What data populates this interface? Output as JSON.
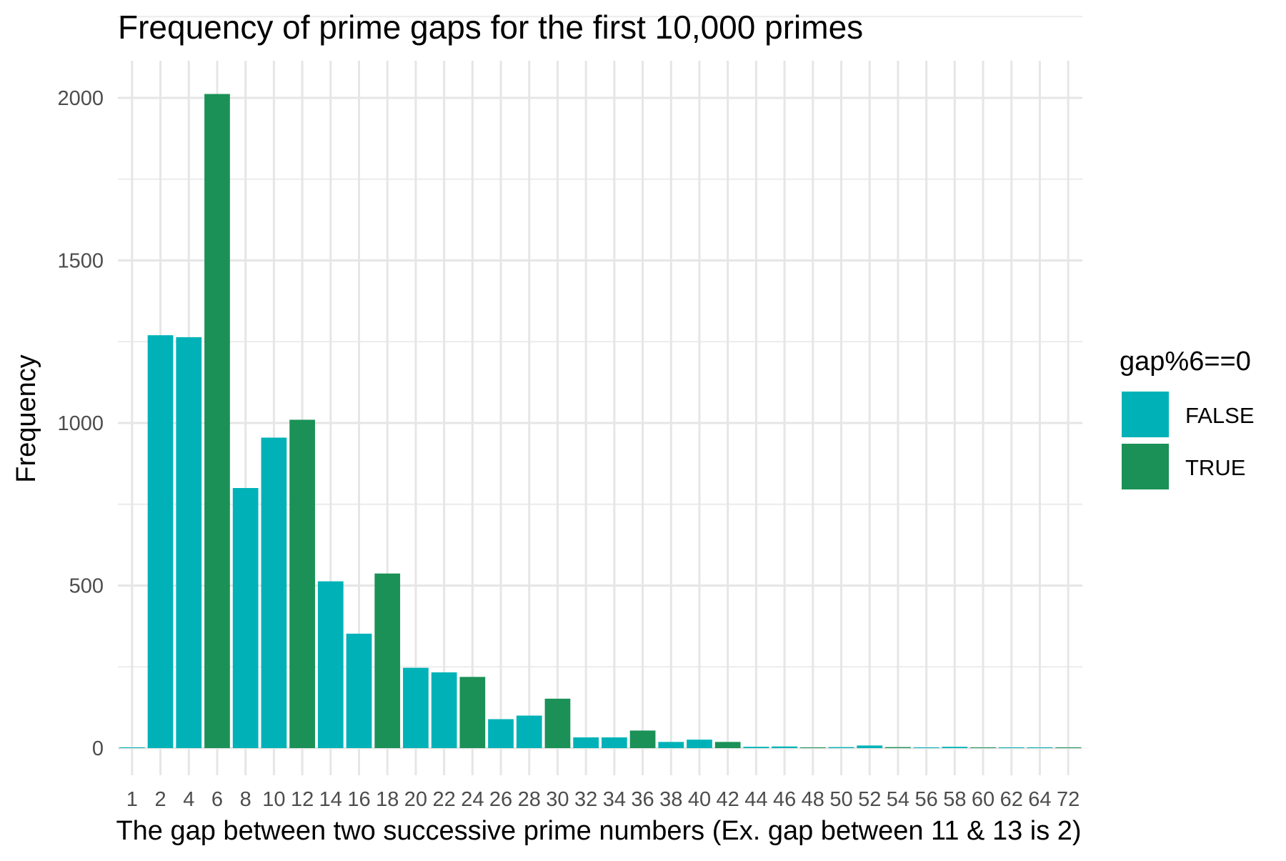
{
  "chart_data": {
    "type": "bar",
    "title": "Frequency of prime gaps for the first 10,000 primes",
    "xlabel": "The gap between two successive prime numbers (Ex. gap between 11 & 13 is 2)",
    "ylabel": "Frequency",
    "categories": [
      "1",
      "2",
      "4",
      "6",
      "8",
      "10",
      "12",
      "14",
      "16",
      "18",
      "20",
      "22",
      "24",
      "26",
      "28",
      "30",
      "32",
      "34",
      "36",
      "38",
      "40",
      "42",
      "44",
      "46",
      "48",
      "50",
      "52",
      "54",
      "56",
      "58",
      "60",
      "62",
      "64",
      "72"
    ],
    "values": [
      1,
      1270,
      1264,
      2012,
      800,
      955,
      1010,
      513,
      352,
      537,
      247,
      233,
      219,
      89,
      100,
      152,
      33,
      33,
      54,
      19,
      26,
      19,
      4,
      5,
      2,
      3,
      8,
      3,
      1,
      4,
      2,
      1,
      1,
      1
    ],
    "groups": [
      "FALSE",
      "FALSE",
      "FALSE",
      "TRUE",
      "FALSE",
      "FALSE",
      "TRUE",
      "FALSE",
      "FALSE",
      "TRUE",
      "FALSE",
      "FALSE",
      "TRUE",
      "FALSE",
      "FALSE",
      "TRUE",
      "FALSE",
      "FALSE",
      "TRUE",
      "FALSE",
      "FALSE",
      "TRUE",
      "FALSE",
      "FALSE",
      "TRUE",
      "FALSE",
      "FALSE",
      "TRUE",
      "FALSE",
      "FALSE",
      "TRUE",
      "FALSE",
      "FALSE",
      "TRUE"
    ],
    "ylim": [
      0,
      2100
    ],
    "yticks": [
      0,
      500,
      1000,
      1500,
      2000
    ],
    "grid": true,
    "legend": {
      "title": "gap%6==0",
      "placement": "right",
      "entries": [
        {
          "label": "FALSE",
          "color": "#00B2B7"
        },
        {
          "label": "TRUE",
          "color": "#1B9157"
        }
      ]
    }
  }
}
